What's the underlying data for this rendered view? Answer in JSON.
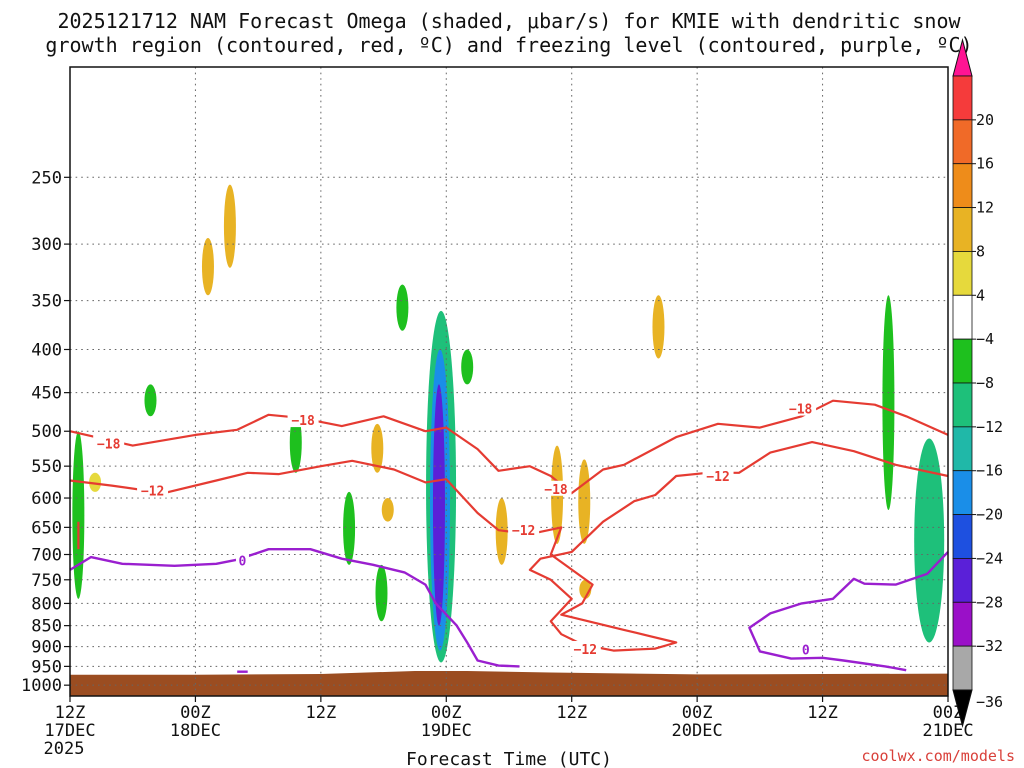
{
  "chart_data": {
    "type": "heatmap",
    "title_line1": "2025121712 NAM Forecast Omega (shaded, μbar/s) for KMIE with dendritic snow",
    "title_line2": "growth region (contoured, red, ºC) and freezing level (contoured, purple, ºC)",
    "xlabel": "Forecast Time (UTC)",
    "credit": "coolwx.com/models",
    "x_range_hours": [
      0,
      84
    ],
    "x_ticks": [
      {
        "hour": 0,
        "line1": "12Z",
        "line2": "17DEC",
        "line3": "2025"
      },
      {
        "hour": 12,
        "line1": "00Z",
        "line2": "18DEC",
        "line3": ""
      },
      {
        "hour": 24,
        "line1": "12Z",
        "line2": "",
        "line3": ""
      },
      {
        "hour": 36,
        "line1": "00Z",
        "line2": "19DEC",
        "line3": ""
      },
      {
        "hour": 48,
        "line1": "12Z",
        "line2": "",
        "line3": ""
      },
      {
        "hour": 60,
        "line1": "00Z",
        "line2": "20DEC",
        "line3": ""
      },
      {
        "hour": 72,
        "line1": "12Z",
        "line2": "",
        "line3": ""
      },
      {
        "hour": 84,
        "line1": "00Z",
        "line2": "21DEC",
        "line3": ""
      }
    ],
    "y_range_hpa": [
      1030,
      185
    ],
    "y_ticks": [
      250,
      300,
      350,
      400,
      450,
      500,
      550,
      600,
      650,
      700,
      750,
      800,
      850,
      900,
      950,
      1000
    ],
    "surface_pressure_hpa": [
      [
        0,
        972
      ],
      [
        12,
        972
      ],
      [
        24,
        970
      ],
      [
        33,
        962
      ],
      [
        38,
        962
      ],
      [
        46,
        966
      ],
      [
        60,
        971
      ],
      [
        72,
        970
      ],
      [
        84,
        969
      ]
    ],
    "colorbar": {
      "tick_labels": [
        "20",
        "16",
        "12",
        "8",
        "4",
        "−4",
        "−8",
        "−12",
        "−16",
        "−20",
        "−24",
        "−28",
        "−32",
        "−36"
      ],
      "colors": [
        "#ff1493",
        "#f53b3b",
        "#f06a28",
        "#ee8c1a",
        "#e8b324",
        "#e6d93c",
        "#ffffff",
        "#1ec01e",
        "#1ec07a",
        "#20b8a8",
        "#1a8ee8",
        "#1e50e0",
        "#5a20d8",
        "#9a10c8",
        "#a8a8a8",
        "#000000"
      ],
      "below_label": "−36"
    },
    "shading": [
      {
        "omega": -4,
        "t": 0.8,
        "p": [
          500,
          790
        ]
      },
      {
        "omega": 4,
        "t": 2.4,
        "p": [
          560,
          590
        ]
      },
      {
        "omega": -6,
        "t": 7.7,
        "p": [
          440,
          480
        ]
      },
      {
        "omega": 6,
        "t": 13.2,
        "p": [
          295,
          345
        ]
      },
      {
        "omega": 6,
        "t": 15.3,
        "p": [
          255,
          320
        ]
      },
      {
        "omega": -6,
        "t": 21.6,
        "p": [
          475,
          560
        ]
      },
      {
        "omega": -6,
        "t": 26.7,
        "p": [
          590,
          720
        ]
      },
      {
        "omega": 6,
        "t": 29.4,
        "p": [
          490,
          560
        ]
      },
      {
        "omega": 6,
        "t": 30.4,
        "p": [
          600,
          640
        ]
      },
      {
        "omega": -6,
        "t": 29.8,
        "p": [
          720,
          840
        ]
      },
      {
        "omega": -6,
        "t": 31.8,
        "p": [
          335,
          380
        ]
      },
      {
        "omega": -8,
        "t": 35.5,
        "p": [
          360,
          940
        ]
      },
      {
        "omega": -16,
        "t": 35.4,
        "p": [
          400,
          910
        ]
      },
      {
        "omega": -24,
        "t": 35.3,
        "p": [
          440,
          850
        ]
      },
      {
        "omega": -6,
        "t": 38.0,
        "p": [
          400,
          440
        ]
      },
      {
        "omega": 6,
        "t": 41.3,
        "p": [
          600,
          720
        ]
      },
      {
        "omega": 6,
        "t": 46.6,
        "p": [
          520,
          680
        ]
      },
      {
        "omega": 6,
        "t": 49.2,
        "p": [
          540,
          680
        ]
      },
      {
        "omega": 6,
        "t": 49.3,
        "p": [
          750,
          790
        ]
      },
      {
        "omega": 6,
        "t": 56.3,
        "p": [
          345,
          410
        ]
      },
      {
        "omega": -6,
        "t": 78.3,
        "p": [
          345,
          620
        ]
      },
      {
        "omega": -8,
        "t": 82.2,
        "p": [
          510,
          890
        ]
      }
    ],
    "contours": {
      "dgz_red": [
        {
          "level": -18,
          "points": [
            [
              0,
              500
            ],
            [
              6,
              520
            ],
            [
              12,
              505
            ],
            [
              16,
              498
            ],
            [
              19,
              478
            ],
            [
              22,
              482
            ],
            [
              26,
              493
            ],
            [
              30,
              480
            ],
            [
              34,
              500
            ],
            [
              36,
              495
            ],
            [
              39,
              525
            ],
            [
              41,
              557
            ],
            [
              44,
              550
            ],
            [
              46,
              565
            ],
            [
              48,
              592
            ],
            [
              51,
              555
            ],
            [
              53,
              548
            ],
            [
              58,
              508
            ],
            [
              62,
              490
            ],
            [
              66,
              495
            ],
            [
              70,
              480
            ],
            [
              73,
              460
            ],
            [
              77,
              465
            ],
            [
              80,
              480
            ],
            [
              84,
              505
            ]
          ]
        },
        {
          "level": -12,
          "points": [
            [
              0,
              572
            ],
            [
              4,
              580
            ],
            [
              9,
              592
            ],
            [
              14,
              572
            ],
            [
              17,
              560
            ],
            [
              20,
              562
            ],
            [
              24,
              550
            ],
            [
              27,
              542
            ],
            [
              31,
              555
            ],
            [
              34,
              575
            ],
            [
              36,
              570
            ],
            [
              39,
              625
            ],
            [
              41,
              655
            ],
            [
              44,
              662
            ],
            [
              47,
              650
            ],
            [
              46,
              700
            ],
            [
              50,
              760
            ],
            [
              49,
              800
            ],
            [
              47,
              825
            ],
            [
              53,
              860
            ],
            [
              58,
              890
            ],
            [
              56,
              905
            ],
            [
              52,
              910
            ],
            [
              49,
              895
            ],
            [
              47,
              870
            ],
            [
              46,
              840
            ],
            [
              48,
              790
            ],
            [
              46,
              750
            ],
            [
              44,
              730
            ],
            [
              45,
              708
            ],
            [
              48,
              695
            ],
            [
              51,
              640
            ],
            [
              54,
              605
            ],
            [
              56,
              595
            ],
            [
              58,
              565
            ],
            [
              61,
              560
            ],
            [
              64,
              560
            ],
            [
              67,
              530
            ],
            [
              71,
              515
            ],
            [
              75,
              528
            ],
            [
              79,
              548
            ],
            [
              84,
              565
            ]
          ]
        },
        {
          "level": -12,
          "points": [
            [
              0.8,
              640
            ],
            [
              0.8,
              690
            ]
          ]
        }
      ],
      "freezing_purple": [
        {
          "level": 0,
          "points": [
            [
              0,
              730
            ],
            [
              2,
              705
            ],
            [
              5,
              718
            ],
            [
              10,
              722
            ],
            [
              14,
              718
            ],
            [
              16,
              710
            ],
            [
              19,
              690
            ],
            [
              23,
              690
            ],
            [
              26,
              708
            ],
            [
              29,
              720
            ],
            [
              32,
              735
            ],
            [
              34,
              760
            ],
            [
              35,
              800
            ],
            [
              37,
              850
            ],
            [
              38,
              890
            ],
            [
              39,
              935
            ],
            [
              41,
              948
            ],
            [
              43,
              950
            ]
          ]
        },
        {
          "level": 0,
          "points": [
            [
              16,
              964
            ],
            [
              17,
              964
            ]
          ]
        },
        {
          "level": 0,
          "points": [
            [
              80,
              960
            ],
            [
              78,
              950
            ],
            [
              74,
              935
            ],
            [
              72,
              928
            ],
            [
              69,
              930
            ],
            [
              66,
              912
            ],
            [
              65,
              855
            ],
            [
              67,
              822
            ],
            [
              70,
              800
            ],
            [
              73,
              790
            ],
            [
              75,
              748
            ],
            [
              76,
              758
            ],
            [
              79,
              760
            ],
            [
              82,
              738
            ],
            [
              84,
              695
            ]
          ]
        }
      ],
      "labels": [
        {
          "text": "−18",
          "color": "#e53b32",
          "t": 3.7,
          "p": 517
        },
        {
          "text": "−18",
          "color": "#e53b32",
          "t": 22.3,
          "p": 485
        },
        {
          "text": "−18",
          "color": "#e53b32",
          "t": 46.5,
          "p": 585
        },
        {
          "text": "−18",
          "color": "#e53b32",
          "t": 69.9,
          "p": 470
        },
        {
          "text": "−12",
          "color": "#e53b32",
          "t": 7.9,
          "p": 588
        },
        {
          "text": "−12",
          "color": "#e53b32",
          "t": 43.4,
          "p": 655
        },
        {
          "text": "−12",
          "color": "#e53b32",
          "t": 49.3,
          "p": 906
        },
        {
          "text": "−12",
          "color": "#e53b32",
          "t": 62.0,
          "p": 565
        },
        {
          "text": "0",
          "color": "#9a1fcf",
          "t": 16.5,
          "p": 712
        },
        {
          "text": "0",
          "color": "#9a1fcf",
          "t": 70.4,
          "p": 907
        }
      ]
    }
  }
}
